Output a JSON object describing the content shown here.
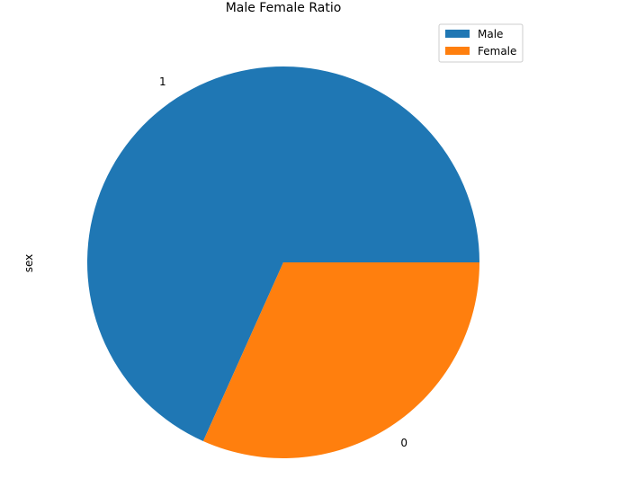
{
  "chart_data": {
    "type": "pie",
    "title": "Male Female Ratio",
    "ylabel": "sex",
    "slices": [
      {
        "label": "1",
        "legend": "Male",
        "value": 68.3,
        "color": "#1f77b4"
      },
      {
        "label": "0",
        "legend": "Female",
        "value": 31.7,
        "color": "#ff7f0e"
      }
    ],
    "legend_position": "top-right",
    "start_angle_deg": 0,
    "direction": "counterclockwise"
  }
}
